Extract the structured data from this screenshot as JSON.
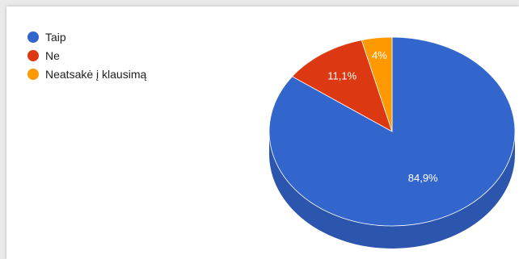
{
  "chart_data": {
    "type": "pie",
    "style": "3d",
    "legend_position": "top-left",
    "categories": [
      "Taip",
      "Ne",
      "Neatsakė į klausimą"
    ],
    "values": [
      84.9,
      11.1,
      4
    ],
    "value_labels": [
      "84,9%",
      "11,1%",
      "4%"
    ],
    "colors": [
      "#3366cc",
      "#dc3912",
      "#ff9900"
    ],
    "side_colors": [
      "#2c55ad",
      "#b92f0f",
      "#d98200"
    ]
  }
}
